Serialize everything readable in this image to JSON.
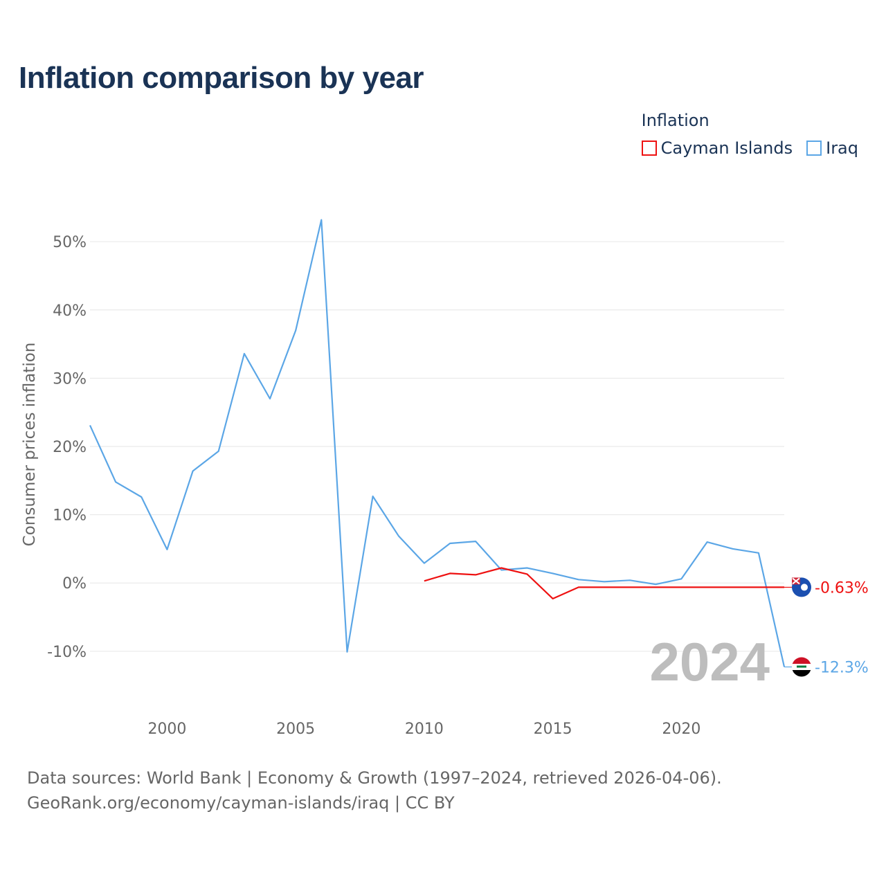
{
  "title": "Inflation comparison by year",
  "legend": {
    "title": "Inflation",
    "items": [
      {
        "name": "Cayman Islands",
        "color": "#ee1111"
      },
      {
        "name": "Iraq",
        "color": "#5ba6e6"
      }
    ]
  },
  "chart_data": {
    "type": "line",
    "ylabel": "Consumer prices inflation",
    "xlabel": "",
    "year_label": "2024",
    "xlim": [
      1997,
      2024
    ],
    "ylim": [
      -16,
      56
    ],
    "x_ticks": [
      2000,
      2005,
      2010,
      2015,
      2020
    ],
    "y_ticks": [
      -10,
      0,
      10,
      20,
      30,
      40,
      50
    ],
    "y_tick_labels": [
      "-10%",
      "0%",
      "10%",
      "20%",
      "30%",
      "40%",
      "50%"
    ],
    "series": [
      {
        "name": "Cayman Islands",
        "color": "#ee1111",
        "icon": "cayman-islands-flag-icon",
        "end_label": "-0.63%",
        "x": [
          2010,
          2011,
          2012,
          2013,
          2014,
          2015,
          2016,
          2024
        ],
        "values": [
          0.3,
          1.4,
          1.2,
          2.2,
          1.3,
          -2.3,
          -0.63,
          -0.63
        ]
      },
      {
        "name": "Iraq",
        "color": "#5ba6e6",
        "icon": "iraq-flag-icon",
        "end_label": "-12.3%",
        "x": [
          1997,
          1998,
          1999,
          2000,
          2001,
          2002,
          2003,
          2004,
          2005,
          2006,
          2007,
          2008,
          2009,
          2010,
          2011,
          2012,
          2013,
          2014,
          2015,
          2016,
          2017,
          2018,
          2019,
          2020,
          2021,
          2022,
          2023,
          2024
        ],
        "values": [
          23.1,
          14.8,
          12.6,
          4.9,
          16.4,
          19.3,
          33.6,
          27.0,
          37.0,
          53.2,
          -10.1,
          12.7,
          6.9,
          2.9,
          5.8,
          6.1,
          1.9,
          2.2,
          1.4,
          0.5,
          0.2,
          0.4,
          -0.2,
          0.6,
          6.0,
          5.0,
          4.4,
          -12.3
        ]
      }
    ]
  },
  "source": {
    "line1": "Data sources: World Bank | Economy & Growth (1997–2024, retrieved 2026-04-06).",
    "line2": "GeoRank.org/economy/cayman-islands/iraq | CC BY"
  }
}
